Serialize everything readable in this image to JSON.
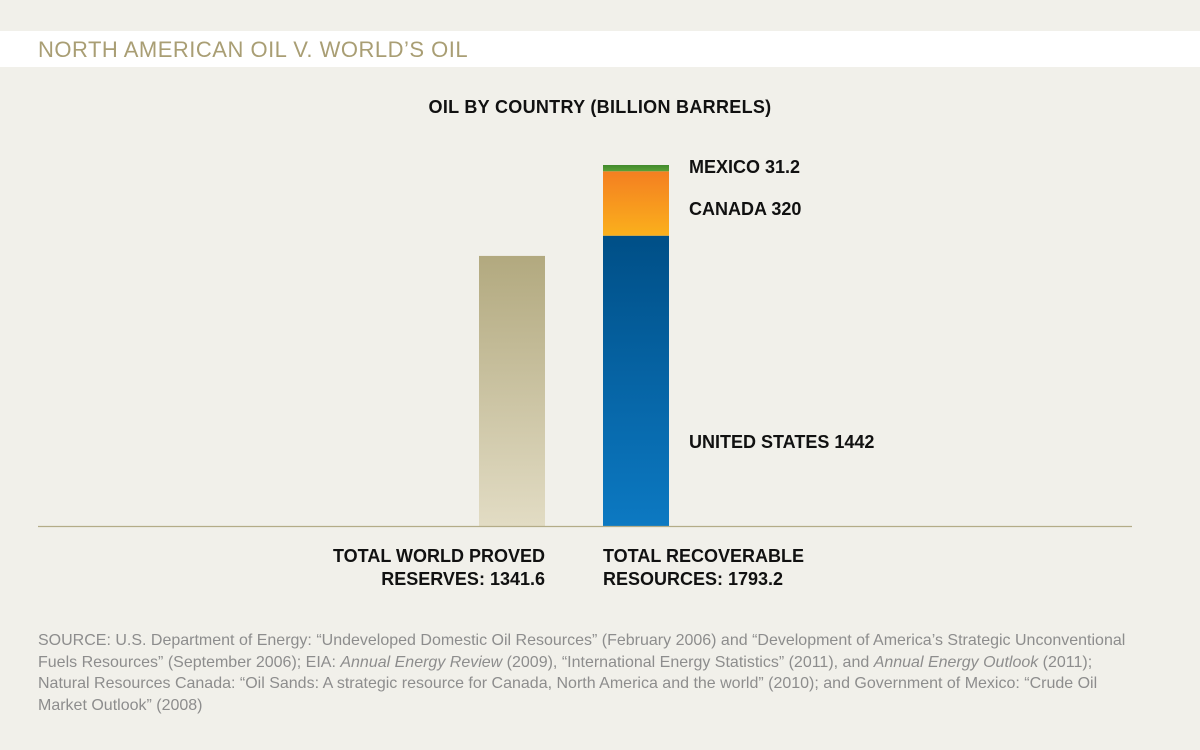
{
  "header": {
    "title": "NORTH AMERICAN OIL V. WORLD’S OIL"
  },
  "chart_data": {
    "type": "bar",
    "title": "OIL BY COUNTRY (BILLION BARRELS)",
    "bars": [
      {
        "label_lines": [
          "TOTAL WORLD PROVED",
          "RESERVES: 1341.6"
        ],
        "total": 1341.6,
        "segments": [
          {
            "name": "",
            "value": 1341.6,
            "color_top": "#b2a97f",
            "color_bottom": "#e2dcc4"
          }
        ]
      },
      {
        "label_lines": [
          "TOTAL RECOVERABLE",
          "RESOURCES: 1793.2"
        ],
        "total": 1793.2,
        "segments": [
          {
            "name": "UNITED STATES 1442",
            "value": 1442,
            "color_top": "#004f87",
            "color_bottom": "#0c79c2"
          },
          {
            "name": "CANADA 320",
            "value": 320,
            "color_top": "#f47f21",
            "color_bottom": "#fbb01c"
          },
          {
            "name": "MEXICO 31.2",
            "value": 31.2,
            "color_top": "#418a2c",
            "color_bottom": "#5aa137"
          }
        ]
      }
    ],
    "ylim": [
      0,
      1800
    ],
    "baseline_color": "#b4ac88"
  },
  "source": {
    "parts": [
      {
        "text": "SOURCE: U.S. Department of Energy: “Undeveloped Domestic Oil Resources” (February 2006) and “Development of America’s Strategic Unconventional Fuels Resources” (September 2006); EIA: ",
        "italic": false
      },
      {
        "text": "Annual Energy Review",
        "italic": true
      },
      {
        "text": " (2009), “International Energy Statistics” (2011), and ",
        "italic": false
      },
      {
        "text": "Annual Energy Outlook",
        "italic": true
      },
      {
        "text": " (2011); Natural Resources Canada: “Oil Sands: A strategic resource for Canada, North America and the world” (2010); and Government of Mexico: “Crude Oil Market Outlook” (2008)",
        "italic": false
      }
    ]
  }
}
